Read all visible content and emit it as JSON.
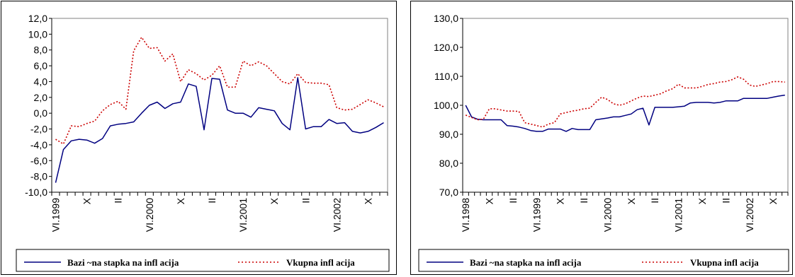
{
  "chart_data": [
    {
      "type": "line",
      "ylim": [
        -10,
        12
      ],
      "y_ticks": [
        "12,0",
        "10,0",
        "8,0",
        "6,0",
        "4,0",
        "2,0",
        "0,0",
        "-2,0",
        "-4,0",
        "-6,0",
        "-8,0",
        "-10,0"
      ],
      "x_labels": [
        "VI.1999",
        "X",
        "II",
        "VI.2000",
        "X",
        "II",
        "VI.2001",
        "X",
        "II",
        "VI.2002",
        "X"
      ],
      "x_label_index": [
        0,
        4,
        8,
        12,
        16,
        20,
        24,
        28,
        32,
        36,
        40
      ],
      "grid": false,
      "legend": "bottom",
      "series": [
        {
          "name": "Bazi ~na stapka na infl acija",
          "color": "#000080",
          "style": "solid",
          "values": [
            -8.8,
            -4.6,
            -3.5,
            -3.3,
            -3.4,
            -3.8,
            -3.2,
            -1.6,
            -1.4,
            -1.3,
            -1.1,
            0.0,
            1.0,
            1.4,
            0.6,
            1.2,
            1.4,
            3.7,
            3.4,
            -2.1,
            4.4,
            4.3,
            0.4,
            0.0,
            0.0,
            -0.5,
            0.7,
            0.5,
            0.3,
            -1.3,
            -2.1,
            4.5,
            -2.0,
            -1.7,
            -1.7,
            -0.8,
            -1.3,
            -1.2,
            -2.3,
            -2.5,
            -2.3,
            -1.8,
            -1.2
          ]
        },
        {
          "name": "Vkupna infl acija",
          "color": "#cc0000",
          "style": "dotted",
          "values": [
            -3.3,
            -3.9,
            -1.6,
            -1.7,
            -1.3,
            -1.0,
            0.3,
            1.1,
            1.5,
            0.5,
            7.9,
            9.6,
            8.2,
            8.3,
            6.6,
            7.5,
            4.0,
            5.5,
            5.0,
            4.2,
            4.8,
            6.0,
            3.3,
            3.3,
            6.6,
            6.0,
            6.5,
            6.0,
            5.0,
            4.0,
            3.7,
            5.0,
            3.9,
            3.8,
            3.8,
            3.6,
            0.7,
            0.4,
            0.5,
            1.1,
            1.7,
            1.3,
            0.8
          ]
        }
      ]
    },
    {
      "type": "line",
      "ylim": [
        70,
        130
      ],
      "y_ticks": [
        "130,0",
        "120,0",
        "110,0",
        "100,0",
        "90,0",
        "80,0",
        "70,0"
      ],
      "x_labels": [
        "VI.1998",
        "X",
        "II",
        "VI.1999",
        "X",
        "II",
        "VI.2000",
        "X",
        "II",
        "VI.2001",
        "X",
        "II",
        "VI.2002",
        "X"
      ],
      "x_label_index": [
        0,
        4,
        8,
        12,
        16,
        20,
        24,
        28,
        32,
        36,
        40,
        44,
        48,
        52
      ],
      "grid": false,
      "legend": "bottom",
      "series": [
        {
          "name": "Bazi ~na stapka na infl acija",
          "color": "#000080",
          "style": "solid",
          "values": [
            100.0,
            96.0,
            95.2,
            95.0,
            95.0,
            95.0,
            95.0,
            93.0,
            92.8,
            92.5,
            92.0,
            91.3,
            91.0,
            91.0,
            91.8,
            91.8,
            91.8,
            91.0,
            92.0,
            91.6,
            91.6,
            91.6,
            95.0,
            95.3,
            95.6,
            96.0,
            96.0,
            96.5,
            97.0,
            98.5,
            99.0,
            93.2,
            99.3,
            99.3,
            99.3,
            99.3,
            99.5,
            99.7,
            100.8,
            101.0,
            101.0,
            101.0,
            100.8,
            101.0,
            101.5,
            101.5,
            101.5,
            102.4,
            102.4,
            102.4,
            102.4,
            102.4,
            102.8,
            103.2,
            103.5
          ]
        },
        {
          "name": "Vkupna infl acija",
          "color": "#cc0000",
          "style": "dotted",
          "values": [
            96.6,
            95.8,
            95.0,
            95.2,
            98.8,
            98.8,
            98.4,
            98.0,
            98.0,
            97.9,
            94.0,
            93.5,
            93.0,
            92.5,
            93.5,
            94.0,
            97.0,
            97.5,
            98.0,
            98.3,
            98.8,
            99.0,
            101.0,
            102.8,
            102.0,
            100.5,
            100.0,
            100.5,
            101.5,
            102.5,
            103.2,
            103.0,
            103.5,
            104.0,
            105.0,
            105.7,
            107.3,
            106.0,
            106.0,
            106.0,
            106.5,
            107.2,
            107.5,
            108.0,
            108.2,
            108.8,
            109.8,
            109.0,
            107.0,
            106.5,
            107.0,
            107.5,
            108.2,
            108.2,
            108.0
          ]
        }
      ]
    }
  ]
}
